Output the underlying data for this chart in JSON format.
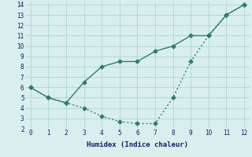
{
  "xlabel": "Humidex (Indice chaleur)",
  "line1_x": [
    0,
    1,
    2,
    3,
    4,
    5,
    6,
    7,
    8,
    9,
    10,
    11,
    12
  ],
  "line1_y": [
    6,
    5,
    4.5,
    6.5,
    8,
    8.5,
    8.5,
    9.5,
    10,
    11,
    11,
    13,
    14
  ],
  "line2_x": [
    0,
    1,
    2,
    3,
    4,
    5,
    6,
    7,
    8,
    9,
    10,
    11,
    12
  ],
  "line2_y": [
    6,
    5,
    4.5,
    4,
    3.2,
    2.7,
    2.5,
    2.5,
    5,
    8.5,
    11,
    13,
    14
  ],
  "color": "#2d7d74",
  "bg_color": "#d8efee",
  "grid_color": "#acd5d2",
  "xlim": [
    -0.3,
    12.3
  ],
  "ylim": [
    2,
    14.3
  ],
  "xticks": [
    0,
    1,
    2,
    3,
    4,
    5,
    6,
    7,
    8,
    9,
    10,
    11,
    12
  ],
  "yticks": [
    2,
    3,
    4,
    5,
    6,
    7,
    8,
    9,
    10,
    11,
    12,
    13,
    14
  ],
  "marker": "D",
  "markersize": 2.5,
  "linewidth": 1.0,
  "tick_fontsize": 5.5,
  "xlabel_fontsize": 6.5
}
